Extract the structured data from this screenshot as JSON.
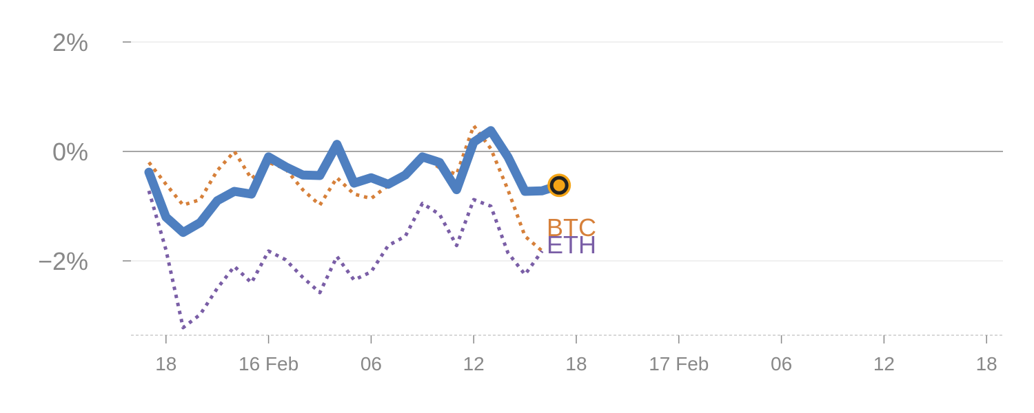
{
  "chart_data": {
    "type": "line",
    "title": "",
    "xlabel": "",
    "ylabel": "",
    "x_index_range": [
      -1,
      50
    ],
    "ylim": [
      -3.35,
      2.0
    ],
    "y_ticks": [
      {
        "value": 2,
        "label": "2%"
      },
      {
        "value": 0,
        "label": "0%"
      },
      {
        "value": -2,
        "label": "−2%"
      }
    ],
    "x_ticks": [
      {
        "index": 1,
        "label": "18"
      },
      {
        "index": 7,
        "label": "16 Feb"
      },
      {
        "index": 13,
        "label": "06"
      },
      {
        "index": 19,
        "label": "12"
      },
      {
        "index": 25,
        "label": "18"
      },
      {
        "index": 31,
        "label": "17 Feb"
      },
      {
        "index": 37,
        "label": "06"
      },
      {
        "index": 43,
        "label": "12"
      },
      {
        "index": 49,
        "label": "18"
      }
    ],
    "grid": true,
    "series": [
      {
        "name": "",
        "color": "#4e7fc0",
        "style": "solid",
        "x": [
          0,
          1,
          2,
          3,
          4,
          5,
          6,
          7,
          8,
          9,
          10,
          11,
          12,
          13,
          14,
          15,
          16,
          17,
          18,
          19,
          20,
          21,
          22,
          23,
          24
        ],
        "values": [
          -0.38,
          -1.2,
          -1.48,
          -1.3,
          -0.9,
          -0.73,
          -0.78,
          -0.1,
          -0.28,
          -0.43,
          -0.44,
          0.13,
          -0.58,
          -0.48,
          -0.6,
          -0.43,
          -0.1,
          -0.2,
          -0.7,
          0.17,
          0.38,
          -0.1,
          -0.73,
          -0.72,
          -0.62
        ]
      },
      {
        "name": "BTC",
        "color": "#d6803a",
        "style": "dotted",
        "x": [
          0,
          1,
          2,
          3,
          4,
          5,
          6,
          7,
          8,
          9,
          10,
          11,
          12,
          13,
          14,
          15,
          16,
          17,
          18,
          19,
          20,
          21,
          22,
          23
        ],
        "values": [
          -0.2,
          -0.6,
          -0.98,
          -0.88,
          -0.35,
          0.0,
          -0.5,
          -0.2,
          -0.32,
          -0.7,
          -0.98,
          -0.48,
          -0.78,
          -0.86,
          -0.62,
          -0.38,
          -0.08,
          -0.3,
          -0.42,
          0.47,
          0.05,
          -0.7,
          -1.55,
          -1.82
        ]
      },
      {
        "name": "ETH",
        "color": "#7a5ea6",
        "style": "dotted",
        "x": [
          0,
          1,
          2,
          3,
          4,
          5,
          6,
          7,
          8,
          9,
          10,
          11,
          12,
          13,
          14,
          15,
          16,
          17,
          18,
          19,
          20,
          21,
          22,
          23
        ],
        "values": [
          -0.72,
          -1.8,
          -3.22,
          -2.98,
          -2.5,
          -2.1,
          -2.4,
          -1.82,
          -1.98,
          -2.3,
          -2.58,
          -1.92,
          -2.35,
          -2.2,
          -1.72,
          -1.55,
          -0.95,
          -1.15,
          -1.72,
          -0.88,
          -1.0,
          -1.85,
          -2.25,
          -1.82
        ]
      }
    ],
    "current_marker": {
      "x": 24,
      "value": -0.62,
      "ring_color": "#f4a416",
      "center_color": "#222222"
    },
    "series_labels": [
      {
        "text": "BTC",
        "color": "#d6803a"
      },
      {
        "text": "ETH",
        "color": "#7a5ea6"
      }
    ]
  }
}
